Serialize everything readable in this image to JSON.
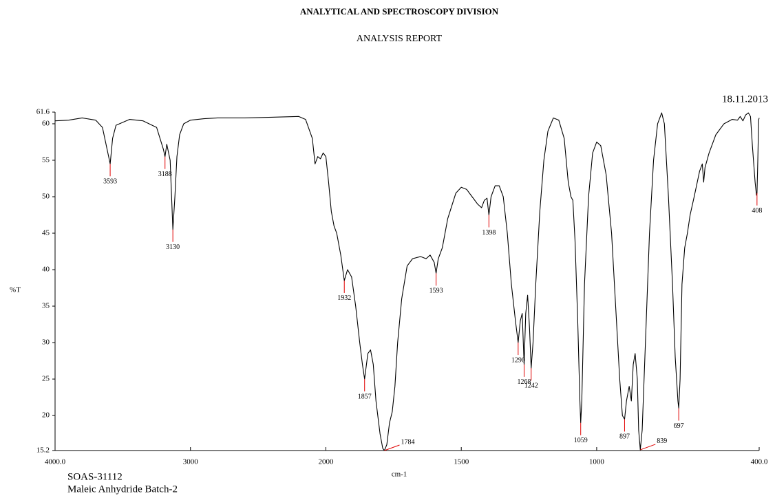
{
  "chart_data": {
    "type": "line",
    "title": "ANALYTICAL AND SPECTROSCOPY DIVISION",
    "subtitle": "ANALYSIS REPORT",
    "date": "18.11.2013",
    "x_label": "cm-1",
    "y_label": "%T",
    "sample_id": "SOAS-31112",
    "sample_name": "Maleic Anhydride Batch-2",
    "color": "#000000",
    "peak_color": "#e00000",
    "xlim": [
      4000,
      400
    ],
    "x_scale_break": 2000,
    "x_scale_ratio": 2,
    "xticks": [
      {
        "value": 4000,
        "label": "4000.0"
      },
      3000,
      2000,
      1500,
      1000,
      {
        "value": 400,
        "label": "400.0"
      }
    ],
    "ylim": [
      15.2,
      61.6
    ],
    "yticks": [
      15.2,
      20,
      25,
      30,
      35,
      40,
      45,
      50,
      55,
      60,
      61.6
    ],
    "x": [
      4000,
      3900,
      3800,
      3700,
      3650,
      3610,
      3593,
      3575,
      3550,
      3450,
      3350,
      3250,
      3200,
      3188,
      3175,
      3150,
      3130,
      3115,
      3100,
      3080,
      3050,
      3000,
      2900,
      2800,
      2600,
      2400,
      2200,
      2150,
      2100,
      2080,
      2060,
      2040,
      2020,
      2000,
      1990,
      1980,
      1970,
      1960,
      1945,
      1932,
      1920,
      1905,
      1890,
      1875,
      1865,
      1857,
      1845,
      1835,
      1825,
      1815,
      1800,
      1790,
      1784,
      1775,
      1765,
      1755,
      1745,
      1735,
      1720,
      1700,
      1680,
      1650,
      1630,
      1615,
      1600,
      1593,
      1585,
      1570,
      1550,
      1520,
      1500,
      1480,
      1460,
      1440,
      1425,
      1415,
      1405,
      1398,
      1390,
      1375,
      1360,
      1345,
      1330,
      1315,
      1300,
      1290,
      1282,
      1275,
      1268,
      1262,
      1255,
      1248,
      1242,
      1235,
      1225,
      1210,
      1195,
      1180,
      1160,
      1140,
      1120,
      1105,
      1095,
      1088,
      1080,
      1070,
      1062,
      1059,
      1055,
      1045,
      1030,
      1015,
      1000,
      985,
      965,
      945,
      930,
      915,
      905,
      897,
      890,
      880,
      872,
      865,
      858,
      850,
      845,
      839,
      832,
      820,
      805,
      790,
      775,
      760,
      750,
      735,
      720,
      710,
      700,
      697,
      692,
      685,
      675,
      665,
      655,
      640,
      620,
      610,
      605,
      600,
      585,
      560,
      530,
      500,
      480,
      470,
      460,
      450,
      440,
      432,
      425,
      415,
      410,
      408,
      405,
      402,
      400
    ],
    "values": [
      60.4,
      60.5,
      60.8,
      60.5,
      59.5,
      56,
      54.5,
      58,
      59.8,
      60.6,
      60.4,
      59.5,
      56.5,
      55.5,
      57.2,
      55,
      45.5,
      50,
      55.5,
      58.5,
      60,
      60.5,
      60.7,
      60.8,
      60.8,
      60.9,
      61,
      60.6,
      58,
      54.5,
      55.5,
      55.2,
      56,
      55.5,
      52,
      48,
      46,
      45,
      42,
      38.5,
      40,
      39,
      35,
      30,
      27,
      25,
      28.5,
      29,
      27,
      22,
      17.5,
      15.5,
      15.2,
      16,
      19,
      20.5,
      24,
      30,
      36,
      40.5,
      41.5,
      41.8,
      41.5,
      42,
      41,
      39.5,
      41.5,
      43,
      47,
      50.5,
      51.3,
      51,
      50,
      49,
      48.5,
      49.5,
      49.8,
      47.5,
      50,
      51.5,
      51.5,
      50,
      45,
      38,
      33,
      30,
      33,
      34,
      27,
      34,
      36.5,
      32,
      26.5,
      30,
      38,
      48,
      55,
      59,
      60.8,
      60.5,
      58,
      52,
      50,
      49.5,
      44,
      33,
      22,
      19,
      22,
      38,
      50,
      56,
      57.5,
      57,
      53,
      45,
      35,
      25,
      20,
      19.5,
      22,
      24,
      22,
      27,
      28.5,
      25,
      18,
      15.3,
      18,
      30,
      45,
      55,
      60,
      61.5,
      60,
      50,
      38,
      28,
      22,
      21,
      25,
      38,
      43,
      45,
      47.5,
      50,
      53.5,
      54.5,
      52,
      54,
      56,
      58.5,
      60,
      60.6,
      60.5,
      61,
      60.4,
      61.2,
      61.5,
      61,
      57,
      52,
      50.2,
      50.5,
      55,
      60.5,
      60.8
    ],
    "peaks": [
      {
        "x": 3593,
        "y": 54.5
      },
      {
        "x": 3188,
        "y": 55.5
      },
      {
        "x": 3130,
        "y": 45.5
      },
      {
        "x": 1932,
        "y": 38.5
      },
      {
        "x": 1857,
        "y": 25
      },
      {
        "x": 1784,
        "y": 15.2
      },
      {
        "x": 1593,
        "y": 39.5
      },
      {
        "x": 1398,
        "y": 47.5
      },
      {
        "x": 1290,
        "y": 30
      },
      {
        "x": 1268,
        "y": 27
      },
      {
        "x": 1242,
        "y": 26.5
      },
      {
        "x": 1059,
        "y": 19
      },
      {
        "x": 897,
        "y": 19.5
      },
      {
        "x": 839,
        "y": 15.3
      },
      {
        "x": 697,
        "y": 21
      },
      {
        "x": 408,
        "y": 50.5
      }
    ]
  }
}
